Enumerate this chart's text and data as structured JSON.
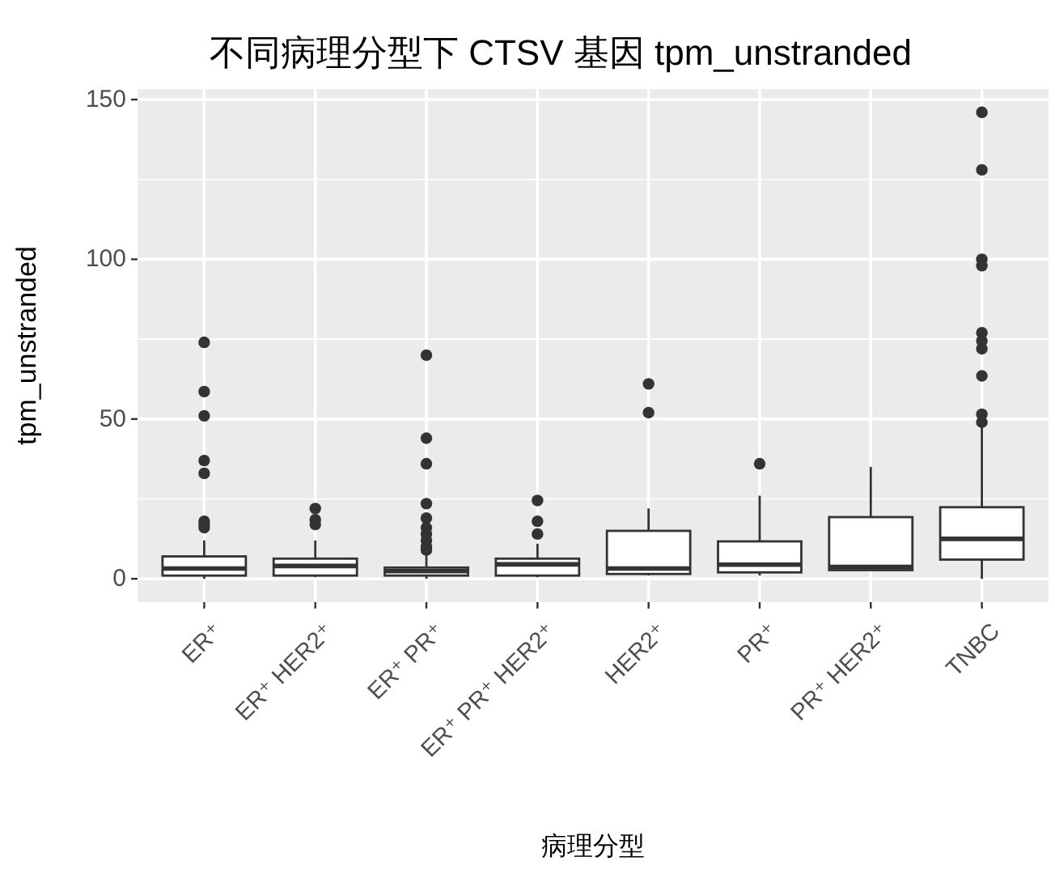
{
  "chart_data": {
    "type": "box",
    "title": "不同病理分型下 CTSV 基因 tpm_unstranded",
    "xlabel": "病理分型",
    "ylabel": "tpm_unstranded",
    "categories": [
      "ER⁺",
      "ER⁺ HER2⁺",
      "ER⁺ PR⁺",
      "ER⁺ PR⁺ HER2⁺",
      "HER2⁺",
      "PR⁺",
      "PR⁺ HER2⁺",
      "TNBC"
    ],
    "boxes": [
      {
        "low": 0,
        "q1": 1,
        "median": 3.2,
        "q3": 7,
        "high": 12,
        "outliers": [
          74,
          58.6,
          51,
          37,
          33,
          18,
          17,
          16
        ]
      },
      {
        "low": 0.5,
        "q1": 1,
        "median": 4,
        "q3": 6.3,
        "high": 12,
        "outliers": [
          22,
          18.5,
          17
        ]
      },
      {
        "low": 0,
        "q1": 1,
        "median": 2.4,
        "q3": 3.5,
        "high": 8,
        "outliers": [
          70,
          44,
          36,
          23.5,
          19,
          16,
          14,
          12,
          10,
          9
        ]
      },
      {
        "low": 0.5,
        "q1": 1,
        "median": 4.5,
        "q3": 6.3,
        "high": 11,
        "outliers": [
          24.5,
          18,
          14
        ]
      },
      {
        "low": 1,
        "q1": 1.5,
        "median": 3.2,
        "q3": 15,
        "high": 22,
        "outliers": [
          61,
          52
        ]
      },
      {
        "low": 1,
        "q1": 2,
        "median": 4.4,
        "q3": 11.7,
        "high": 26,
        "outliers": [
          36
        ]
      },
      {
        "low": 2.7,
        "q1": 2.7,
        "median": 3.7,
        "q3": 19.3,
        "high": 35
      },
      {
        "low": 0,
        "q1": 6,
        "median": 12.5,
        "q3": 22.4,
        "high": 48,
        "outliers": [
          146,
          128,
          100,
          98,
          77,
          74.5,
          72,
          63.5,
          51.5,
          49
        ]
      }
    ],
    "color": "#ffffff",
    "ylim": [
      -7.3,
      153.3
    ],
    "yticks": [
      0,
      50,
      100,
      150
    ],
    "grid": true
  }
}
